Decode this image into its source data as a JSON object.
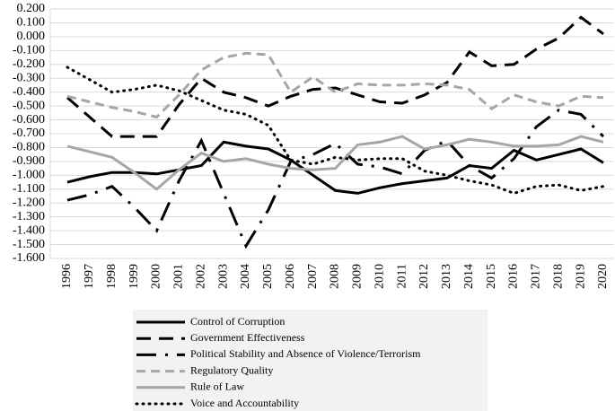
{
  "chart_data": {
    "type": "line",
    "categories": [
      "1996",
      "1997",
      "1998",
      "1999",
      "2000",
      "2001",
      "2002",
      "2003",
      "2004",
      "2005",
      "2006",
      "2007",
      "2008",
      "2009",
      "2010",
      "2011",
      "2012",
      "2013",
      "2014",
      "2015",
      "2016",
      "2017",
      "2018",
      "2019",
      "2020"
    ],
    "ylim": [
      -1.6,
      0.2
    ],
    "yticks": [
      {
        "value": 0.2,
        "label": "0.200"
      },
      {
        "value": 0.1,
        "label": "0.100"
      },
      {
        "value": 0,
        "label": "0.000"
      },
      {
        "value": -0.1,
        "label": "-0.100"
      },
      {
        "value": -0.2,
        "label": "-0.200"
      },
      {
        "value": -0.3,
        "label": "-0.300"
      },
      {
        "value": -0.4,
        "label": "-0.400"
      },
      {
        "value": -0.5,
        "label": "-0.500"
      },
      {
        "value": -0.6,
        "label": "-0.600"
      },
      {
        "value": -0.7,
        "label": "-0.700"
      },
      {
        "value": -0.8,
        "label": "-0.800"
      },
      {
        "value": -0.9,
        "label": "-0.900"
      },
      {
        "value": -1.0,
        "label": "-1.000"
      },
      {
        "value": -1.1,
        "label": "-1.100"
      },
      {
        "value": -1.2,
        "label": "-1.200"
      },
      {
        "value": -1.3,
        "label": "-1.300"
      },
      {
        "value": -1.4,
        "label": "-1.400"
      },
      {
        "value": -1.5,
        "label": "-1.500"
      },
      {
        "value": -1.6,
        "label": "-1.600"
      }
    ],
    "grid": true,
    "series": [
      {
        "name": "Control of Corruption",
        "color": "#000000",
        "dash": "none",
        "values": [
          -1.05,
          -1.01,
          -0.98,
          -0.98,
          -0.99,
          -0.96,
          -0.93,
          -0.76,
          -0.79,
          -0.81,
          -0.89,
          -1.0,
          -1.11,
          -1.13,
          -1.09,
          -1.06,
          -1.04,
          -1.02,
          -0.93,
          -0.95,
          -0.82,
          -0.89,
          -0.85,
          -0.81,
          -0.91
        ]
      },
      {
        "name": "Government Effectiveness",
        "color": "#000000",
        "dash": "16,9",
        "values": [
          -0.44,
          -0.58,
          -0.72,
          -0.72,
          -0.72,
          -0.49,
          -0.3,
          -0.4,
          -0.44,
          -0.5,
          -0.43,
          -0.38,
          -0.37,
          -0.42,
          -0.47,
          -0.48,
          -0.42,
          -0.33,
          -0.11,
          -0.21,
          -0.2,
          -0.09,
          -0.01,
          0.14,
          0.02
        ]
      },
      {
        "name": "Political Stability and Absence of Violence/Terrorism",
        "color": "#000000",
        "dash": "22,10,3,10",
        "values": [
          -1.18,
          -1.14,
          -1.08,
          -1.23,
          -1.4,
          -1.04,
          -0.75,
          -1.13,
          -1.51,
          -1.25,
          -0.9,
          -0.85,
          -0.77,
          -0.92,
          -0.94,
          -0.99,
          -0.82,
          -0.75,
          -0.93,
          -1.02,
          -0.88,
          -0.65,
          -0.53,
          -0.56,
          -0.72
        ]
      },
      {
        "name": "Regulatory Quality",
        "color": "#a6a6a6",
        "dash": "10,6",
        "values": [
          -0.43,
          -0.47,
          -0.51,
          -0.54,
          -0.58,
          -0.42,
          -0.24,
          -0.15,
          -0.12,
          -0.13,
          -0.4,
          -0.29,
          -0.4,
          -0.34,
          -0.35,
          -0.35,
          -0.34,
          -0.35,
          -0.38,
          -0.52,
          -0.42,
          -0.47,
          -0.5,
          -0.43,
          -0.44
        ]
      },
      {
        "name": "Rule of Law",
        "color": "#a6a6a6",
        "dash": "none",
        "values": [
          -0.79,
          -0.83,
          -0.87,
          -0.98,
          -1.1,
          -0.96,
          -0.84,
          -0.9,
          -0.88,
          -0.92,
          -0.95,
          -0.96,
          -0.95,
          -0.78,
          -0.76,
          -0.72,
          -0.81,
          -0.78,
          -0.74,
          -0.76,
          -0.79,
          -0.79,
          -0.78,
          -0.72,
          -0.76
        ]
      },
      {
        "name": "Voice and Accountability",
        "color": "#000000",
        "dash": "1,6",
        "values": [
          -0.22,
          -0.31,
          -0.4,
          -0.38,
          -0.35,
          -0.39,
          -0.46,
          -0.53,
          -0.56,
          -0.64,
          -0.89,
          -0.92,
          -0.87,
          -0.89,
          -0.88,
          -0.88,
          -0.97,
          -1.0,
          -1.04,
          -1.07,
          -1.13,
          -1.08,
          -1.07,
          -1.11,
          -1.08
        ]
      }
    ]
  }
}
